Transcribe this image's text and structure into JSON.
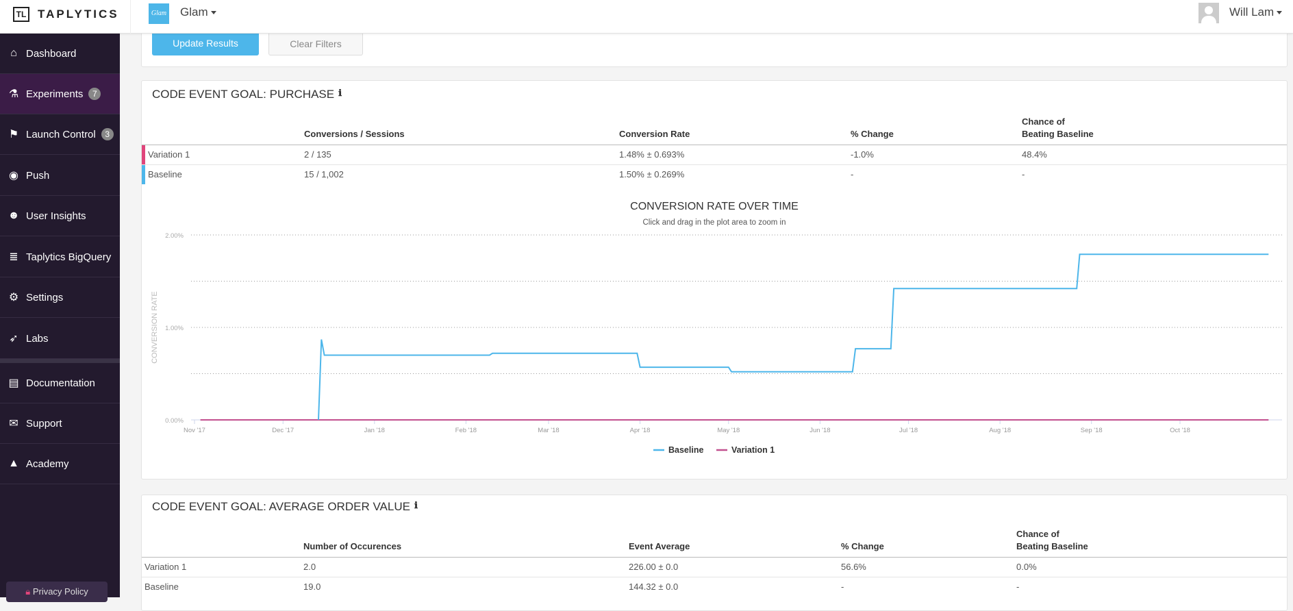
{
  "header": {
    "brand": "TAPLYTICS",
    "brand_mark": "TL",
    "app_logo_text": "Glam",
    "app_name": "Glam",
    "user_name": "Will Lam"
  },
  "sidebar": {
    "items": [
      {
        "label": "Dashboard",
        "icon": "home-icon"
      },
      {
        "label": "Experiments",
        "icon": "flask-icon",
        "badge": "7"
      },
      {
        "label": "Launch Control",
        "icon": "flag-icon",
        "badge": "3"
      },
      {
        "label": "Push",
        "icon": "target-icon"
      },
      {
        "label": "User Insights",
        "icon": "users-icon"
      },
      {
        "label": "Taplytics BigQuery",
        "icon": "database-icon"
      },
      {
        "label": "Settings",
        "icon": "gears-icon"
      },
      {
        "label": "Labs",
        "icon": "rocket-icon"
      },
      {
        "label": "Documentation",
        "icon": "book-icon"
      },
      {
        "label": "Support",
        "icon": "chat-icon"
      },
      {
        "label": "Academy",
        "icon": "graduation-cap-icon"
      }
    ],
    "privacy": "Privacy Policy"
  },
  "filters": {
    "update": "Update Results",
    "clear": "Clear Filters"
  },
  "purchase": {
    "title": "CODE EVENT GOAL: PURCHASE",
    "headers": [
      "Conversions / Sessions",
      "Conversion Rate",
      "% Change",
      "Chance of",
      "Beating Baseline"
    ],
    "rows": [
      {
        "name": "Variation 1",
        "conv": "2  /  135",
        "rate": "1.48% ± 0.693%",
        "change": "-1.0%",
        "chance": "48.4%",
        "color": "#e0457b"
      },
      {
        "name": "Baseline",
        "conv": "15  /  1,002",
        "rate": "1.50% ± 0.269%",
        "change": "-",
        "chance": "-",
        "color": "#4db6ea"
      }
    ]
  },
  "chart_data": {
    "type": "line",
    "title": "CONVERSION RATE OVER TIME",
    "subtitle": "Click and drag in the plot area to zoom in",
    "ylabel": "CONVERSION RATE",
    "xlabel": "",
    "ylim": [
      0,
      2
    ],
    "yticks": [
      {
        "v": 0,
        "label": "0.00%"
      },
      {
        "v": 0.5,
        "label": ""
      },
      {
        "v": 1,
        "label": "1.00%"
      },
      {
        "v": 1.5,
        "label": ""
      },
      {
        "v": 2,
        "label": "2.00%"
      }
    ],
    "xticks": [
      {
        "date": "2017-11-01",
        "label": "Nov '17"
      },
      {
        "date": "2017-12-01",
        "label": "Dec '17"
      },
      {
        "date": "2018-01-01",
        "label": "Jan '18"
      },
      {
        "date": "2018-02-01",
        "label": "Feb '18"
      },
      {
        "date": "2018-03-01",
        "label": "Mar '18"
      },
      {
        "date": "2018-04-01",
        "label": "Apr '18"
      },
      {
        "date": "2018-05-01",
        "label": "May '18"
      },
      {
        "date": "2018-06-01",
        "label": "Jun '18"
      },
      {
        "date": "2018-07-01",
        "label": "Jul '18"
      },
      {
        "date": "2018-08-01",
        "label": "Aug '18"
      },
      {
        "date": "2018-09-01",
        "label": "Sep '18"
      },
      {
        "date": "2018-10-01",
        "label": "Oct '18"
      }
    ],
    "xrange": [
      "2017-11-01",
      "2018-10-31"
    ],
    "grid": true,
    "legend": "bottom-center",
    "series": [
      {
        "name": "Baseline",
        "color": "#4db6ea",
        "points": [
          [
            "2017-12-13",
            0
          ],
          [
            "2017-12-14",
            0.87
          ],
          [
            "2017-12-15",
            0.7
          ],
          [
            "2018-02-09",
            0.7
          ],
          [
            "2018-02-10",
            0.72
          ],
          [
            "2018-03-31",
            0.72
          ],
          [
            "2018-04-01",
            0.57
          ],
          [
            "2018-05-01",
            0.57
          ],
          [
            "2018-05-02",
            0.52
          ],
          [
            "2018-06-12",
            0.52
          ],
          [
            "2018-06-13",
            0.77
          ],
          [
            "2018-06-25",
            0.77
          ],
          [
            "2018-06-26",
            1.42
          ],
          [
            "2018-08-27",
            1.42
          ],
          [
            "2018-08-28",
            1.79
          ],
          [
            "2018-10-31",
            1.79
          ]
        ]
      },
      {
        "name": "Variation 1",
        "color": "#c2508f",
        "points": [
          [
            "2017-11-03",
            0
          ],
          [
            "2018-10-31",
            0
          ]
        ]
      }
    ]
  },
  "aov": {
    "title": "CODE EVENT GOAL: AVERAGE ORDER VALUE",
    "headers": [
      "Number of Occurences",
      "Event Average",
      "% Change",
      "Chance of",
      "Beating Baseline"
    ],
    "rows": [
      {
        "name": "Variation 1",
        "count": "2.0",
        "avg": "226.00 ±  0.0",
        "change": "56.6%",
        "chance": "0.0%"
      },
      {
        "name": "Baseline",
        "count": "19.0",
        "avg": "144.32 ±  0.0",
        "change": "-",
        "chance": "-"
      }
    ]
  }
}
